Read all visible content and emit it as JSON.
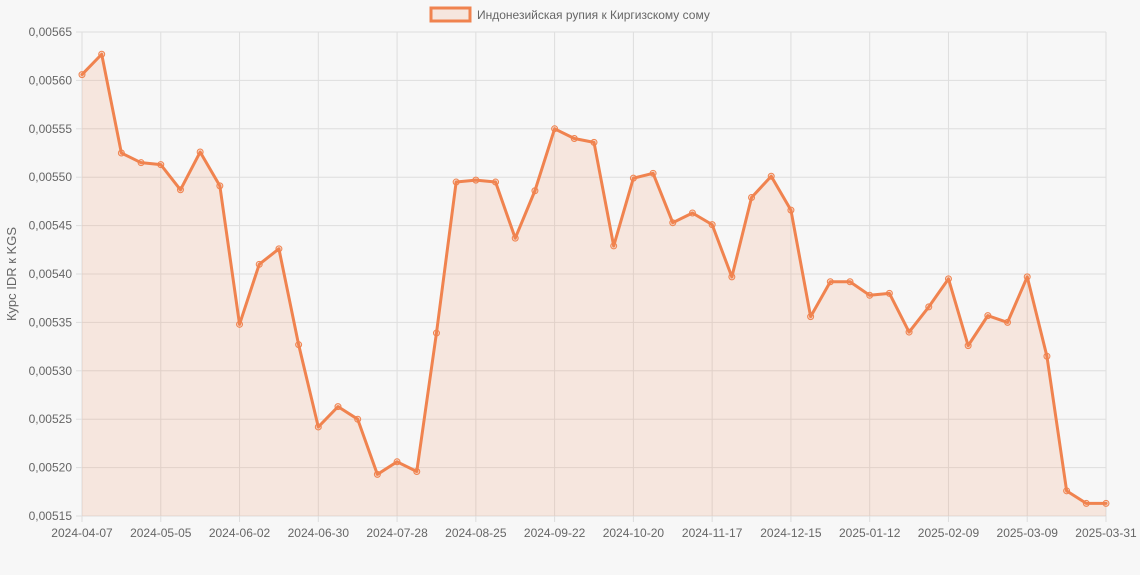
{
  "chart_data": {
    "type": "area",
    "ylabel": "Курс IDR к KGS",
    "ylim": [
      0.00515,
      0.00565
    ],
    "grid": true,
    "legend_position": "top-center",
    "yticks": [
      0.00515,
      0.0052,
      0.00525,
      0.0053,
      0.00535,
      0.0054,
      0.00545,
      0.0055,
      0.00555,
      0.0056,
      0.00565
    ],
    "ytick_labels": [
      "0,00515",
      "0,00520",
      "0,00525",
      "0,00530",
      "0,00535",
      "0,00540",
      "0,00545",
      "0,00550",
      "0,00555",
      "0,00560",
      "0,00565"
    ],
    "xtick_labels": [
      "2024-04-07",
      "2024-05-05",
      "2024-06-02",
      "2024-06-30",
      "2024-07-28",
      "2024-08-25",
      "2024-09-22",
      "2024-10-20",
      "2024-11-17",
      "2024-12-15",
      "2025-01-12",
      "2025-02-09",
      "2025-03-09",
      "2025-03-31"
    ],
    "xtick_indices": [
      0,
      4,
      8,
      12,
      16,
      20,
      24,
      28,
      32,
      36,
      40,
      44,
      48,
      52
    ],
    "series": [
      {
        "name": "Индонезийская рупия к Киргизскому сому",
        "color": "#f0834f",
        "x": [
          "2024-04-07",
          "2024-04-14",
          "2024-04-21",
          "2024-04-28",
          "2024-05-05",
          "2024-05-12",
          "2024-05-19",
          "2024-05-26",
          "2024-06-02",
          "2024-06-09",
          "2024-06-16",
          "2024-06-23",
          "2024-06-30",
          "2024-07-07",
          "2024-07-14",
          "2024-07-21",
          "2024-07-28",
          "2024-08-04",
          "2024-08-11",
          "2024-08-18",
          "2024-08-25",
          "2024-09-01",
          "2024-09-08",
          "2024-09-15",
          "2024-09-22",
          "2024-09-29",
          "2024-10-06",
          "2024-10-13",
          "2024-10-20",
          "2024-10-27",
          "2024-11-03",
          "2024-11-10",
          "2024-11-17",
          "2024-11-24",
          "2024-12-01",
          "2024-12-08",
          "2024-12-15",
          "2024-12-22",
          "2024-12-29",
          "2025-01-05",
          "2025-01-12",
          "2025-01-19",
          "2025-01-26",
          "2025-02-02",
          "2025-02-09",
          "2025-02-16",
          "2025-02-23",
          "2025-03-02",
          "2025-03-09",
          "2025-03-16",
          "2025-03-23",
          "2025-03-30",
          "2025-03-31"
        ],
        "values": [
          0.005606,
          0.005627,
          0.005525,
          0.005515,
          0.005513,
          0.005487,
          0.005526,
          0.005491,
          0.005348,
          0.00541,
          0.005426,
          0.005327,
          0.005242,
          0.005263,
          0.00525,
          0.005193,
          0.005206,
          0.005196,
          0.005339,
          0.005495,
          0.005497,
          0.005495,
          0.005437,
          0.005486,
          0.00555,
          0.00554,
          0.005536,
          0.005429,
          0.005499,
          0.005504,
          0.005453,
          0.005463,
          0.005451,
          0.005397,
          0.005479,
          0.005501,
          0.005466,
          0.005356,
          0.005392,
          0.005392,
          0.005378,
          0.00538,
          0.00534,
          0.005366,
          0.005395,
          0.005326,
          0.005357,
          0.00535,
          0.005397,
          0.005315,
          0.005176,
          0.005163,
          0.005163
        ]
      }
    ]
  }
}
